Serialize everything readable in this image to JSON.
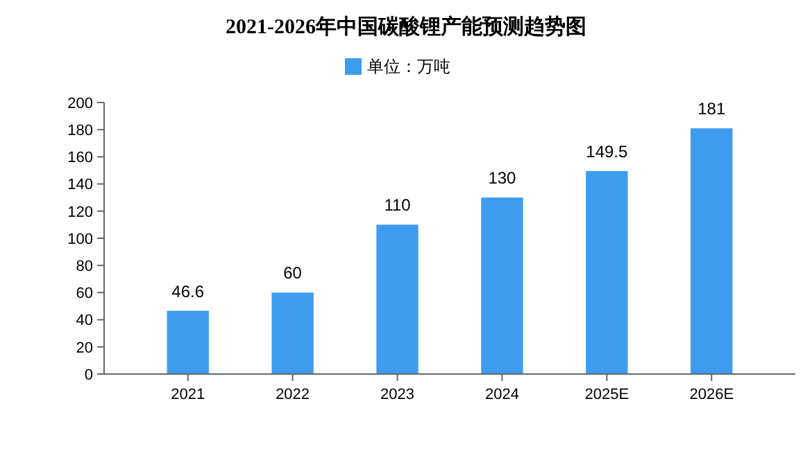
{
  "chart_data": {
    "type": "bar",
    "title": "2021-2026年中国碳酸锂产能预测趋势图",
    "categories": [
      "2021",
      "2022",
      "2023",
      "2024",
      "2025E",
      "2026E"
    ],
    "series": [
      {
        "name": "单位：万吨",
        "color": "#3d9cf0",
        "values": [
          46.6,
          60,
          110,
          130,
          149.5,
          181
        ]
      }
    ],
    "value_labels": [
      "46.6",
      "60",
      "110",
      "130",
      "149.5",
      "181"
    ],
    "ylim": [
      0,
      200
    ],
    "yticks": [
      0,
      20,
      40,
      60,
      80,
      100,
      120,
      140,
      160,
      180,
      200
    ],
    "grid": false,
    "legend": "top"
  }
}
